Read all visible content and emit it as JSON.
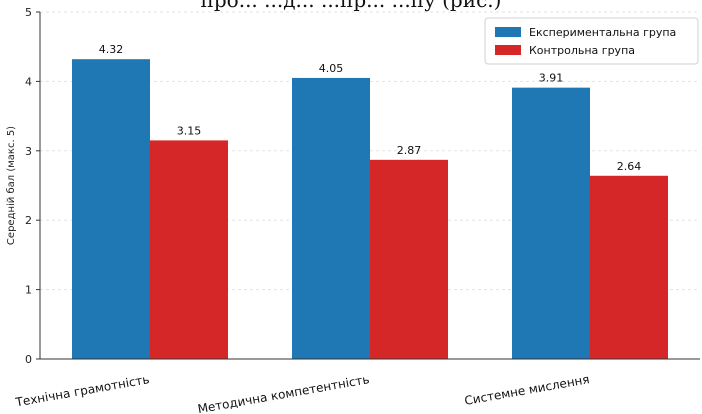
{
  "page": {
    "caption_fragment": "про... ...д... ...пр... ...пу (рис.)"
  },
  "chart_data": {
    "type": "bar",
    "categories": [
      "Технічна грамотність",
      "Методична компетентність",
      "Системне мислення"
    ],
    "series": [
      {
        "name": "Експериментальна група",
        "values": [
          4.32,
          4.05,
          3.91
        ],
        "color": "#1f77b4"
      },
      {
        "name": "Контрольна група",
        "values": [
          3.15,
          2.87,
          2.64
        ],
        "color": "#d62728"
      }
    ],
    "data_labels": [
      [
        "4.32",
        "4.05",
        "3.91"
      ],
      [
        "3.15",
        "2.87",
        "2.64"
      ]
    ],
    "title": "",
    "xlabel": "",
    "ylabel": "Середній бал (макс. 5)",
    "ylim": [
      0,
      5
    ],
    "yticks": [
      "0",
      "1",
      "2",
      "3",
      "4",
      "5"
    ],
    "grid": true,
    "legend_position": "top-right"
  }
}
